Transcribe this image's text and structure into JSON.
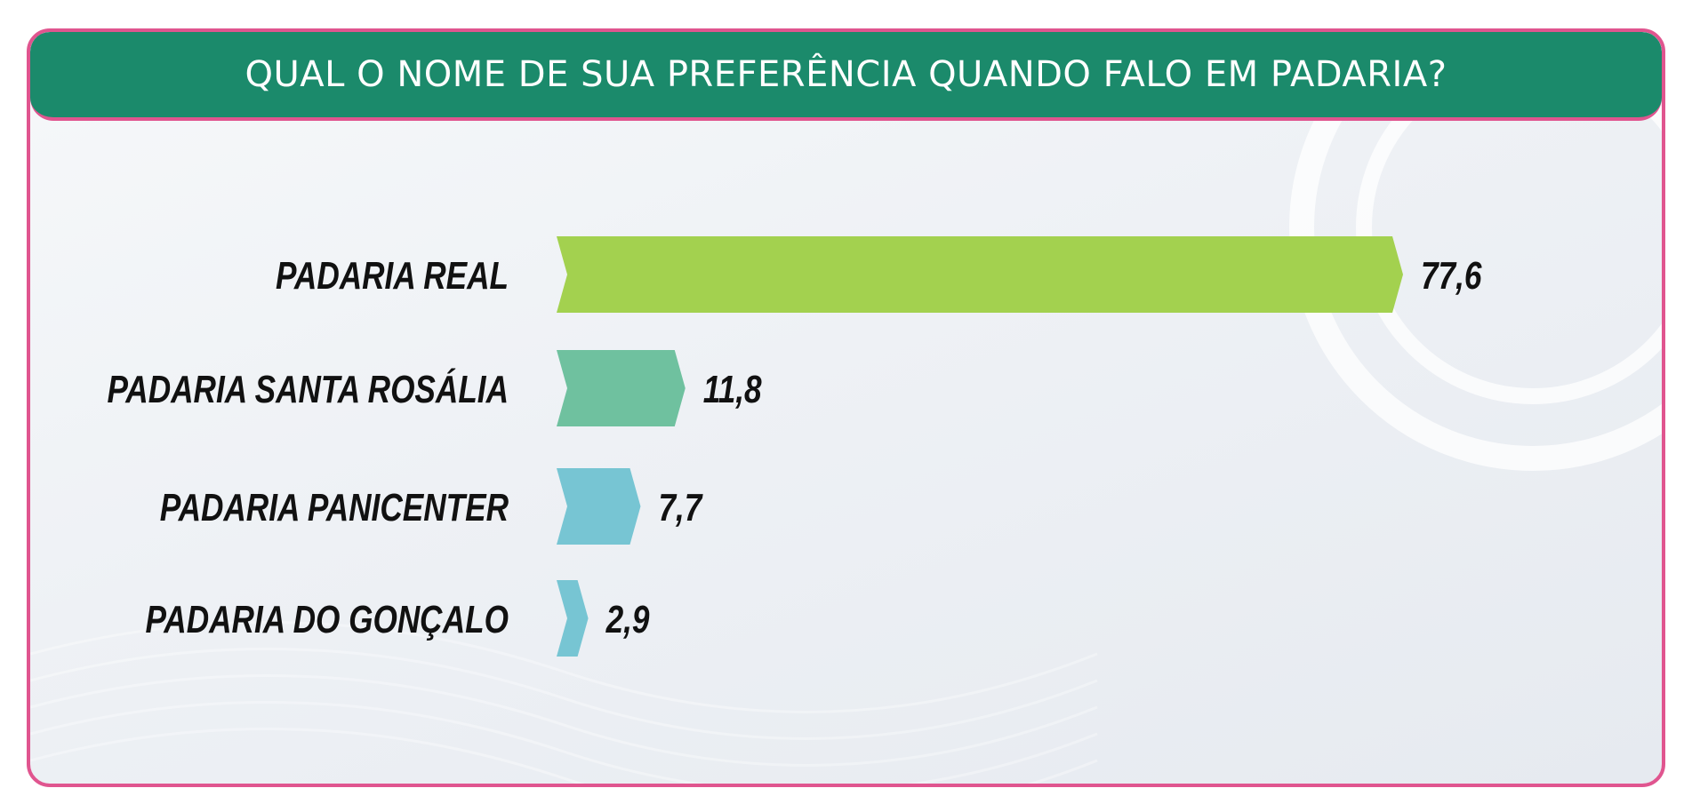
{
  "chart_data": {
    "type": "bar",
    "orientation": "horizontal",
    "title": "QUAL O NOME DE SUA PREFERÊNCIA QUANDO FALO EM PADARIA?",
    "categories": [
      "PADARIA REAL",
      "PADARIA SANTA ROSÁLIA",
      "PADARIA PANICENTER",
      "PADARIA DO GONÇALO"
    ],
    "values": [
      77.6,
      11.8,
      7.7,
      2.9
    ],
    "value_labels": [
      "77,6",
      "11,8",
      "7,7",
      "2,9"
    ],
    "bar_colors": [
      "#a3d14f",
      "#6fc19f",
      "#77c5d3",
      "#77c5d3"
    ],
    "xlim": [
      0,
      77.6
    ],
    "grid": false,
    "legend": "none"
  },
  "colors": {
    "header": "#1b8a6b",
    "border": "#e0558f"
  }
}
